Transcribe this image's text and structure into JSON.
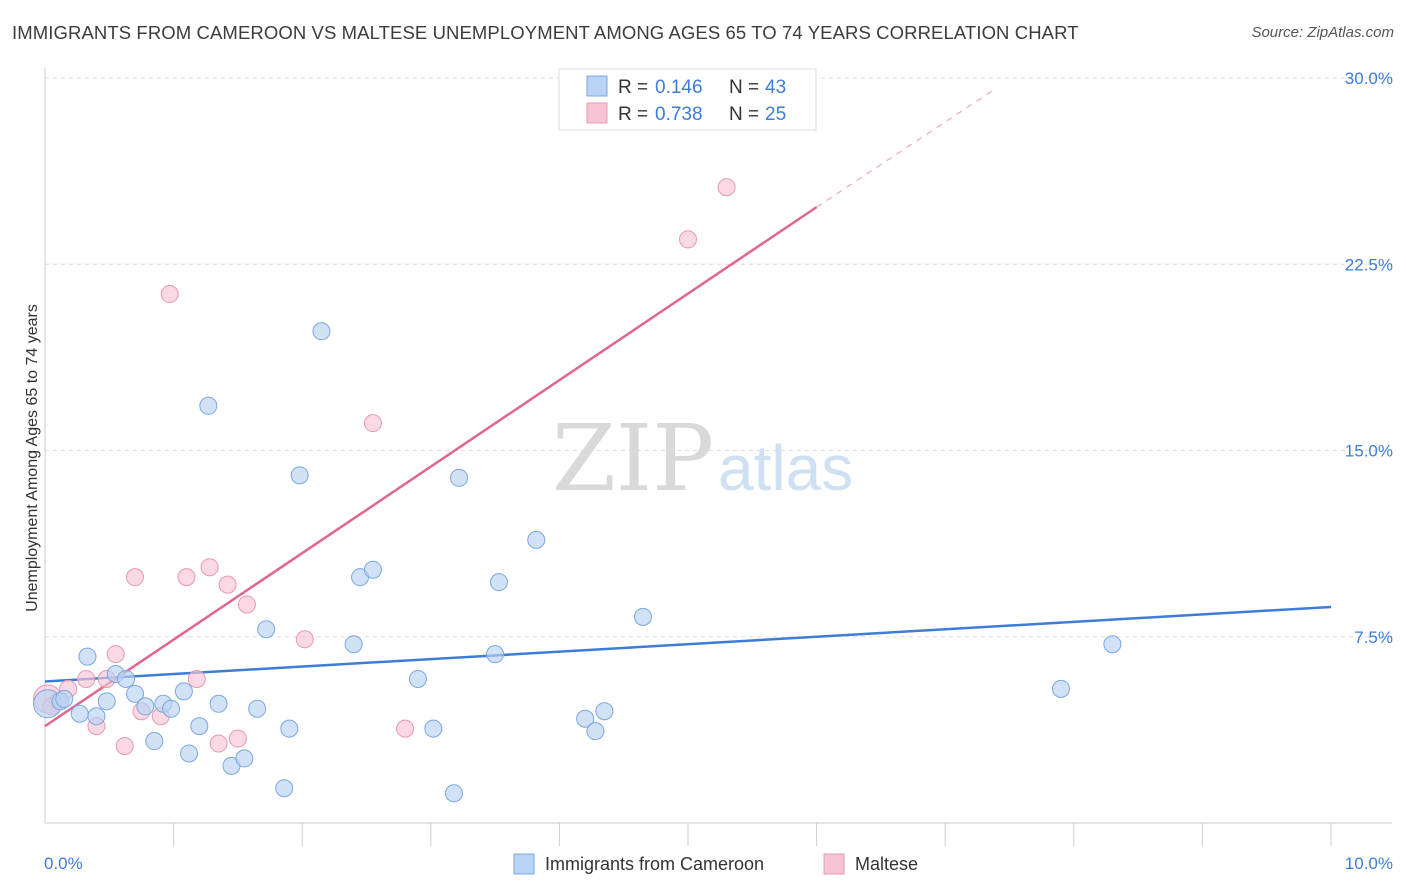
{
  "title": "IMMIGRANTS FROM CAMEROON VS MALTESE UNEMPLOYMENT AMONG AGES 65 TO 74 YEARS CORRELATION CHART",
  "source": "Source: ZipAtlas.com",
  "watermark": {
    "zip": "ZIP",
    "atlas": "atlas"
  },
  "colors": {
    "blue": "#3d7dd6",
    "blue_fill": "#b8d3f3",
    "pink": "#e06690",
    "pink_fill": "#f7c4d5",
    "grid": "#dddddd"
  },
  "legend": {
    "rows": [
      {
        "r_label": "R =",
        "r_value": "0.146",
        "n_label": "N =",
        "n_value": "43"
      },
      {
        "r_label": "R =",
        "r_value": "0.738",
        "n_label": "N =",
        "n_value": "25"
      }
    ]
  },
  "chart_data": {
    "type": "scatter",
    "title": "IMMIGRANTS FROM CAMEROON VS MALTESE UNEMPLOYMENT AMONG AGES 65 TO 74 YEARS CORRELATION CHART",
    "xlabel": "",
    "ylabel": "Unemployment Among Ages 65 to 74 years",
    "xlim": [
      0,
      10
    ],
    "ylim": [
      0,
      30
    ],
    "x_tick_labels": [
      "0.0%",
      "10.0%"
    ],
    "y_ticks": [
      7.5,
      15,
      22.5,
      30
    ],
    "y_tick_labels": [
      "7.5%",
      "15.0%",
      "22.5%",
      "30.0%"
    ],
    "series": [
      {
        "name": "Immigrants from Cameroon",
        "trend": {
          "x0": 0,
          "y0": 5.7,
          "x1": 10,
          "y1": 8.7
        },
        "points": [
          {
            "x": 0.02,
            "y": 4.8
          },
          {
            "x": 0.12,
            "y": 4.9
          },
          {
            "x": 0.27,
            "y": 4.4
          },
          {
            "x": 0.33,
            "y": 6.7
          },
          {
            "x": 0.4,
            "y": 4.3
          },
          {
            "x": 0.48,
            "y": 4.9
          },
          {
            "x": 0.55,
            "y": 6.0
          },
          {
            "x": 0.63,
            "y": 5.8
          },
          {
            "x": 0.7,
            "y": 5.2
          },
          {
            "x": 0.78,
            "y": 4.7
          },
          {
            "x": 0.85,
            "y": 3.3
          },
          {
            "x": 0.92,
            "y": 4.8
          },
          {
            "x": 0.98,
            "y": 4.6
          },
          {
            "x": 1.08,
            "y": 5.3
          },
          {
            "x": 1.12,
            "y": 2.8
          },
          {
            "x": 1.2,
            "y": 3.9
          },
          {
            "x": 1.27,
            "y": 16.8
          },
          {
            "x": 1.35,
            "y": 4.8
          },
          {
            "x": 1.45,
            "y": 2.3
          },
          {
            "x": 1.55,
            "y": 2.6
          },
          {
            "x": 1.65,
            "y": 4.6
          },
          {
            "x": 1.72,
            "y": 7.8
          },
          {
            "x": 1.86,
            "y": 1.4
          },
          {
            "x": 1.9,
            "y": 3.8
          },
          {
            "x": 1.98,
            "y": 14.0
          },
          {
            "x": 2.15,
            "y": 19.8
          },
          {
            "x": 2.4,
            "y": 7.2
          },
          {
            "x": 2.45,
            "y": 9.9
          },
          {
            "x": 2.55,
            "y": 10.2
          },
          {
            "x": 2.9,
            "y": 5.8
          },
          {
            "x": 3.02,
            "y": 3.8
          },
          {
            "x": 3.18,
            "y": 1.2
          },
          {
            "x": 3.22,
            "y": 13.9
          },
          {
            "x": 3.5,
            "y": 6.8
          },
          {
            "x": 3.53,
            "y": 9.7
          },
          {
            "x": 3.82,
            "y": 11.4
          },
          {
            "x": 4.2,
            "y": 4.2
          },
          {
            "x": 4.28,
            "y": 3.7
          },
          {
            "x": 4.35,
            "y": 4.5
          },
          {
            "x": 4.65,
            "y": 8.3
          },
          {
            "x": 7.9,
            "y": 5.4
          },
          {
            "x": 8.3,
            "y": 7.2
          },
          {
            "x": 0.15,
            "y": 5.0
          }
        ]
      },
      {
        "name": "Maltese",
        "trend": {
          "x0": 0,
          "y0": 3.9,
          "x1": 6.0,
          "y1": 24.8
        },
        "trend_dashed": {
          "x0": 6.0,
          "y0": 24.8,
          "x1": 7.4,
          "y1": 29.6
        },
        "points": [
          {
            "x": 0.02,
            "y": 5.0
          },
          {
            "x": 0.1,
            "y": 4.9
          },
          {
            "x": 0.18,
            "y": 5.4
          },
          {
            "x": 0.32,
            "y": 5.8
          },
          {
            "x": 0.4,
            "y": 3.9
          },
          {
            "x": 0.48,
            "y": 5.8
          },
          {
            "x": 0.55,
            "y": 6.8
          },
          {
            "x": 0.62,
            "y": 3.1
          },
          {
            "x": 0.7,
            "y": 9.9
          },
          {
            "x": 0.75,
            "y": 4.5
          },
          {
            "x": 0.9,
            "y": 4.3
          },
          {
            "x": 0.97,
            "y": 21.3
          },
          {
            "x": 1.1,
            "y": 9.9
          },
          {
            "x": 1.18,
            "y": 5.8
          },
          {
            "x": 1.28,
            "y": 10.3
          },
          {
            "x": 1.35,
            "y": 3.2
          },
          {
            "x": 1.42,
            "y": 9.6
          },
          {
            "x": 1.5,
            "y": 3.4
          },
          {
            "x": 1.57,
            "y": 8.8
          },
          {
            "x": 2.02,
            "y": 7.4
          },
          {
            "x": 2.55,
            "y": 16.1
          },
          {
            "x": 2.8,
            "y": 3.8
          },
          {
            "x": 5.0,
            "y": 23.5
          },
          {
            "x": 5.3,
            "y": 25.6
          },
          {
            "x": 0.05,
            "y": 4.7
          }
        ]
      }
    ]
  },
  "bottom_legend": [
    "Immigrants from Cameroon",
    "Maltese"
  ]
}
